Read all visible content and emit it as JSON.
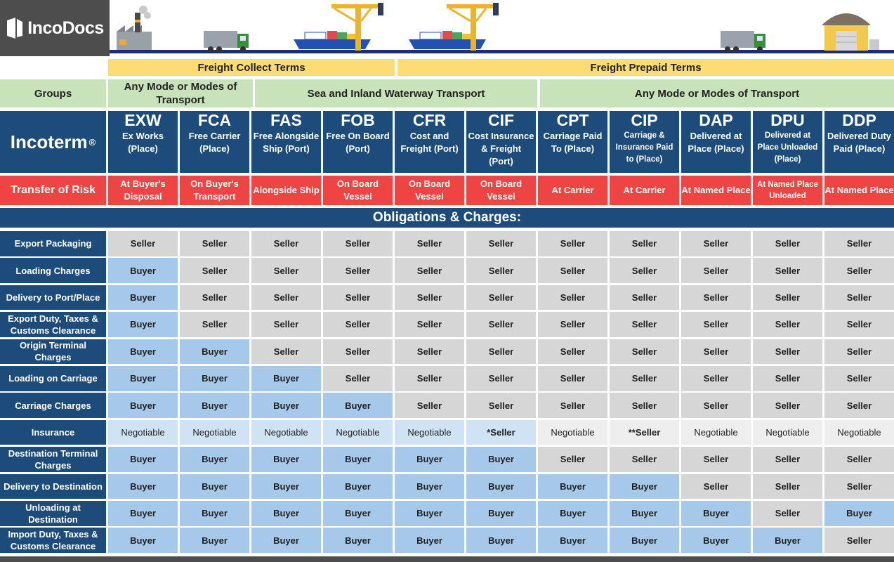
{
  "brand": {
    "name": "IncoDocs"
  },
  "terms": {
    "collect": "Freight Collect Terms",
    "prepaid": "Freight Prepaid Terms"
  },
  "groups": {
    "label": "Groups",
    "any_mode": "Any Mode or Modes of Transport",
    "sea": "Sea and Inland Waterway Transport",
    "any_mode_2": "Any Mode or Modes of Transport"
  },
  "incoterm_label": {
    "text": "Incoterm",
    "mark": "®"
  },
  "risk_label": "Transfer of Risk",
  "obligations_title": "Obligations & Charges:",
  "incoterms": [
    {
      "code": "EXW",
      "desc": "Ex Works (Place)",
      "risk": "At Buyer's Disposal"
    },
    {
      "code": "FCA",
      "desc": "Free Carrier (Place)",
      "risk": "On Buyer's Transport"
    },
    {
      "code": "FAS",
      "desc": "Free Alongside Ship (Port)",
      "risk": "Alongside Ship"
    },
    {
      "code": "FOB",
      "desc": "Free On Board (Port)",
      "risk": "On Board Vessel"
    },
    {
      "code": "CFR",
      "desc": "Cost and Freight (Port)",
      "risk": "On Board Vessel"
    },
    {
      "code": "CIF",
      "desc": "Cost Insurance & Freight (Port)",
      "risk": "On Board Vessel"
    },
    {
      "code": "CPT",
      "desc": "Carriage Paid To (Place)",
      "risk": "At Carrier"
    },
    {
      "code": "CIP",
      "desc": "Carriage & Insurance Paid to (Place)",
      "risk": "At Carrier"
    },
    {
      "code": "DAP",
      "desc": "Delivered at Place (Place)",
      "risk": "At Named Place"
    },
    {
      "code": "DPU",
      "desc": "Delivered at Place Unloaded (Place)",
      "risk": "At Named Place Unloaded"
    },
    {
      "code": "DDP",
      "desc": "Delivered Duty Paid (Place)",
      "risk": "At Named Place"
    }
  ],
  "rows": [
    {
      "label": "Export Packaging",
      "values": [
        "Seller",
        "Seller",
        "Seller",
        "Seller",
        "Seller",
        "Seller",
        "Seller",
        "Seller",
        "Seller",
        "Seller",
        "Seller"
      ]
    },
    {
      "label": "Loading Charges",
      "values": [
        "Buyer",
        "Seller",
        "Seller",
        "Seller",
        "Seller",
        "Seller",
        "Seller",
        "Seller",
        "Seller",
        "Seller",
        "Seller"
      ]
    },
    {
      "label": "Delivery to Port/Place",
      "values": [
        "Buyer",
        "Seller",
        "Seller",
        "Seller",
        "Seller",
        "Seller",
        "Seller",
        "Seller",
        "Seller",
        "Seller",
        "Seller"
      ]
    },
    {
      "label": "Export Duty, Taxes & Customs Clearance",
      "values": [
        "Buyer",
        "Seller",
        "Seller",
        "Seller",
        "Seller",
        "Seller",
        "Seller",
        "Seller",
        "Seller",
        "Seller",
        "Seller"
      ]
    },
    {
      "label": "Origin Terminal Charges",
      "values": [
        "Buyer",
        "Buyer",
        "Seller",
        "Seller",
        "Seller",
        "Seller",
        "Seller",
        "Seller",
        "Seller",
        "Seller",
        "Seller"
      ]
    },
    {
      "label": "Loading on Carriage",
      "values": [
        "Buyer",
        "Buyer",
        "Buyer",
        "Seller",
        "Seller",
        "Seller",
        "Seller",
        "Seller",
        "Seller",
        "Seller",
        "Seller"
      ]
    },
    {
      "label": "Carriage Charges",
      "values": [
        "Buyer",
        "Buyer",
        "Buyer",
        "Buyer",
        "Seller",
        "Seller",
        "Seller",
        "Seller",
        "Seller",
        "Seller",
        "Seller"
      ]
    },
    {
      "label": "Insurance",
      "values": [
        "Negotiable",
        "Negotiable",
        "Negotiable",
        "Negotiable",
        "Negotiable",
        "*Seller",
        "Negotiable",
        "**Seller",
        "Negotiable",
        "Negotiable",
        "Negotiable"
      ]
    },
    {
      "label": "Destination Terminal Charges",
      "values": [
        "Buyer",
        "Buyer",
        "Buyer",
        "Buyer",
        "Buyer",
        "Buyer",
        "Seller",
        "Seller",
        "Seller",
        "Seller",
        "Seller"
      ]
    },
    {
      "label": "Delivery to Destination",
      "values": [
        "Buyer",
        "Buyer",
        "Buyer",
        "Buyer",
        "Buyer",
        "Buyer",
        "Buyer",
        "Buyer",
        "Seller",
        "Seller",
        "Seller"
      ]
    },
    {
      "label": "Unloading at Destination",
      "values": [
        "Buyer",
        "Buyer",
        "Buyer",
        "Buyer",
        "Buyer",
        "Buyer",
        "Buyer",
        "Buyer",
        "Buyer",
        "Seller",
        "Buyer"
      ]
    },
    {
      "label": "Import Duty, Taxes & Customs Clearance",
      "values": [
        "Buyer",
        "Buyer",
        "Buyer",
        "Buyer",
        "Buyer",
        "Buyer",
        "Buyer",
        "Buyer",
        "Buyer",
        "Buyer",
        "Seller"
      ]
    }
  ],
  "colors": {
    "navy": "#1e4c7a",
    "red": "#ee4444",
    "yellow": "#fddc76",
    "green": "#c8e3b9",
    "seller": "#d6d6d6",
    "buyer": "#a6c9ea"
  }
}
